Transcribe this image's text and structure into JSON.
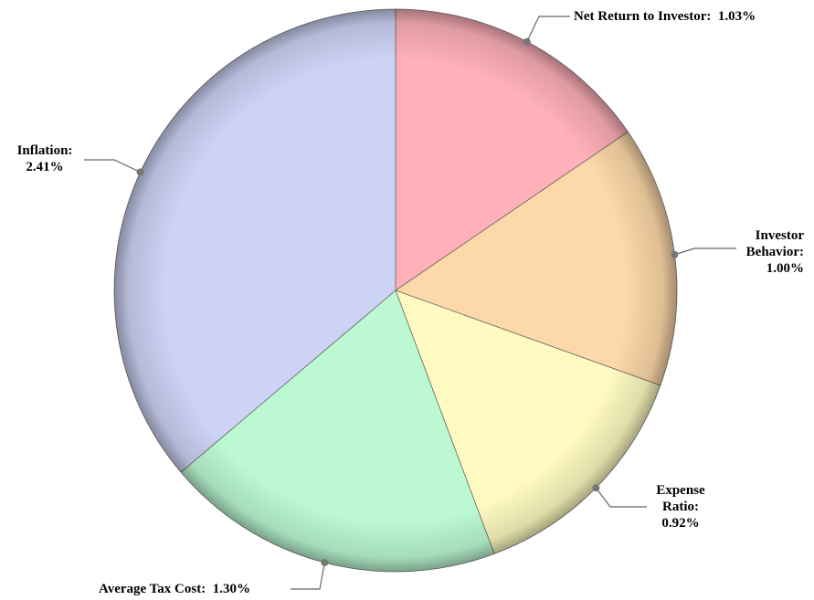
{
  "chart_data": {
    "type": "pie",
    "categories": [
      "Net Return to Investor:",
      "Investor Behavior:",
      "Expense Ratio:",
      "Average Tax Cost:",
      "Inflation:"
    ],
    "values": [
      1.03,
      1.0,
      0.92,
      1.3,
      2.41
    ],
    "value_labels": [
      "1.03%",
      "1.00%",
      "0.92%",
      "1.30%",
      "2.41%"
    ],
    "colors": [
      "#ffb0b9",
      "#fdd8a8",
      "#fefac0",
      "#bcf9d3",
      "#cdd3f5"
    ]
  }
}
